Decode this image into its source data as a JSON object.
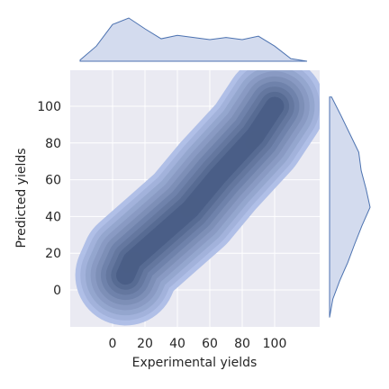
{
  "chart_data": {
    "type": "kde-joint",
    "xlabel": "Experimental yields",
    "ylabel": "Predicted yields",
    "x_ticks": [
      0,
      20,
      40,
      60,
      80,
      100
    ],
    "y_ticks": [
      0,
      20,
      40,
      60,
      80,
      100
    ],
    "xlim": [
      -26,
      128
    ],
    "ylim": [
      -20,
      110
    ],
    "grid": true,
    "colors": {
      "background": "#EAEAF2",
      "grid": "#FFFFFF",
      "fill_light": "#ADBDE6",
      "fill_dark": "#4A5E86",
      "marginal_fill": "#D3DBEE",
      "marginal_line": "#4C72B0"
    },
    "density_centers": [
      {
        "x": 12,
        "y": 15,
        "weight": 1.0
      },
      {
        "x": 48,
        "y": 45,
        "weight": 0.95
      },
      {
        "x": 88,
        "y": 82,
        "weight": 0.95
      }
    ],
    "density_levels": 9,
    "marginal_x": {
      "x": [
        -20,
        -10,
        0,
        10,
        20,
        30,
        40,
        50,
        60,
        70,
        80,
        90,
        100,
        110,
        120
      ],
      "density": [
        0.03,
        0.35,
        0.85,
        1.0,
        0.75,
        0.52,
        0.6,
        0.55,
        0.5,
        0.55,
        0.5,
        0.58,
        0.35,
        0.06,
        0.0
      ]
    },
    "marginal_y": {
      "y": [
        -15,
        -5,
        5,
        15,
        25,
        35,
        45,
        55,
        65,
        75,
        85,
        95,
        105
      ],
      "density": [
        0.0,
        0.08,
        0.25,
        0.45,
        0.62,
        0.8,
        1.0,
        0.9,
        0.78,
        0.72,
        0.5,
        0.28,
        0.05
      ]
    }
  }
}
